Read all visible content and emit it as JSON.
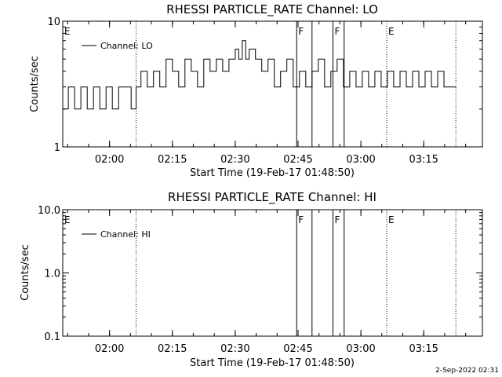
{
  "chart_data": [
    {
      "type": "line",
      "title": "RHESSI PARTICLE_RATE Channel: LO",
      "xlabel": "Start Time (19-Feb-17 01:48:50)",
      "ylabel": "Counts/sec",
      "yscale": "log",
      "ylim": [
        1,
        10
      ],
      "y_tick_labels": [
        "1",
        "10"
      ],
      "y_ticks": [
        1,
        10
      ],
      "xlim": [
        "01:48:50",
        "03:29:00"
      ],
      "x_tick_labels": [
        "02:00",
        "02:15",
        "02:30",
        "02:45",
        "03:00",
        "03:15"
      ],
      "x_ticks": [
        "02:00",
        "02:15",
        "02:30",
        "02:45",
        "03:00",
        "03:15"
      ],
      "grid": false,
      "legend": {
        "position": "top-left",
        "entries": [
          "Channel: LO"
        ]
      },
      "markers": [
        {
          "time": "01:48:50",
          "label": "E",
          "style": "dotted"
        },
        {
          "time": "02:06:20",
          "label": "",
          "style": "dotted"
        },
        {
          "time": "02:44:40",
          "label": "F",
          "style": "solid"
        },
        {
          "time": "02:48:20",
          "label": "",
          "style": "solid"
        },
        {
          "time": "02:53:20",
          "label": "F",
          "style": "solid"
        },
        {
          "time": "02:56:00",
          "label": "",
          "style": "solid"
        },
        {
          "time": "03:06:10",
          "label": "E",
          "style": "dotted"
        },
        {
          "time": "03:22:40",
          "label": "",
          "style": "dotted"
        }
      ],
      "series": [
        {
          "name": "Channel: LO",
          "x": [
            "01:48:50",
            "01:50:10",
            "01:51:40",
            "01:53:10",
            "01:54:40",
            "01:56:10",
            "01:57:40",
            "01:59:10",
            "02:00:40",
            "02:02:10",
            "02:03:40",
            "02:05:10",
            "02:06:20",
            "02:07:30",
            "02:09:00",
            "02:10:30",
            "02:12:00",
            "02:13:30",
            "02:15:00",
            "02:16:30",
            "02:18:00",
            "02:19:30",
            "02:21:00",
            "02:22:30",
            "02:24:00",
            "02:25:30",
            "02:27:00",
            "02:28:30",
            "02:30:00",
            "02:30:50",
            "02:31:40",
            "02:32:30",
            "02:33:20",
            "02:34:50",
            "02:36:20",
            "02:37:50",
            "02:39:20",
            "02:40:50",
            "02:42:20",
            "02:43:50",
            "02:45:20",
            "02:46:50",
            "02:48:20",
            "02:49:50",
            "02:51:20",
            "02:52:50",
            "02:54:20",
            "02:55:50",
            "02:57:20",
            "02:58:50",
            "03:00:20",
            "03:01:50",
            "03:03:20",
            "03:04:50",
            "03:06:20",
            "03:07:50",
            "03:09:20",
            "03:10:50",
            "03:12:20",
            "03:13:50",
            "03:15:20",
            "03:16:50",
            "03:18:20",
            "03:19:50",
            "03:21:20",
            "03:22:40"
          ],
          "values": [
            2.0,
            3.0,
            2.0,
            3.0,
            2.0,
            3.0,
            2.0,
            3.0,
            2.0,
            3.0,
            3.0,
            2.0,
            3.0,
            4.0,
            3.0,
            4.0,
            3.0,
            5.0,
            4.0,
            3.0,
            5.0,
            4.0,
            3.0,
            5.0,
            4.0,
            5.0,
            4.0,
            5.0,
            6.0,
            5.0,
            7.0,
            5.0,
            6.0,
            5.0,
            4.0,
            5.0,
            3.0,
            4.0,
            5.0,
            3.0,
            4.0,
            3.0,
            4.0,
            5.0,
            3.0,
            4.0,
            5.0,
            3.0,
            4.0,
            3.0,
            4.0,
            3.0,
            4.0,
            3.0,
            4.0,
            3.0,
            4.0,
            3.0,
            4.0,
            3.0,
            4.0,
            3.0,
            4.0,
            3.0,
            3.0,
            3.0
          ]
        }
      ]
    },
    {
      "type": "line",
      "title": "RHESSI PARTICLE_RATE Channel: HI",
      "xlabel": "Start Time (19-Feb-17 01:48:50)",
      "ylabel": "Counts/sec",
      "yscale": "log",
      "ylim": [
        0.1,
        10
      ],
      "y_tick_labels": [
        "0.1",
        "1.0",
        "10.0"
      ],
      "y_ticks": [
        0.1,
        1,
        10
      ],
      "xlim": [
        "01:48:50",
        "03:29:00"
      ],
      "x_tick_labels": [
        "02:00",
        "02:15",
        "02:30",
        "02:45",
        "03:00",
        "03:15"
      ],
      "x_ticks": [
        "02:00",
        "02:15",
        "02:30",
        "02:45",
        "03:00",
        "03:15"
      ],
      "grid": false,
      "legend": {
        "position": "top-left",
        "entries": [
          "Channel: HI"
        ]
      },
      "markers": [
        {
          "time": "01:48:50",
          "label": "E",
          "style": "dotted"
        },
        {
          "time": "02:06:20",
          "label": "",
          "style": "dotted"
        },
        {
          "time": "02:44:40",
          "label": "F",
          "style": "solid"
        },
        {
          "time": "02:48:20",
          "label": "",
          "style": "solid"
        },
        {
          "time": "02:53:20",
          "label": "F",
          "style": "solid"
        },
        {
          "time": "02:56:00",
          "label": "",
          "style": "solid"
        },
        {
          "time": "03:06:10",
          "label": "E",
          "style": "dotted"
        },
        {
          "time": "03:22:40",
          "label": "",
          "style": "dotted"
        }
      ],
      "series": [
        {
          "name": "Channel: HI",
          "x": [],
          "values": []
        }
      ]
    }
  ],
  "footer": {
    "timestamp": "2-Sep-2022 02:31"
  }
}
